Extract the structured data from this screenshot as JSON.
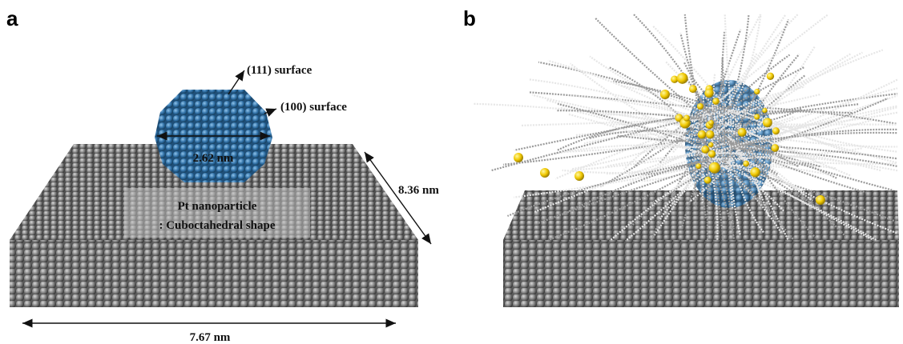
{
  "panel_a": {
    "letter": "a",
    "labels": {
      "surface_111": "(111) surface",
      "surface_100": "(100) surface",
      "diameter": "2.62 nm",
      "depth": "8.36 nm",
      "particle_name": "Pt nanoparticle",
      "particle_shape": ": Cuboctahedral shape",
      "width": "7.67 nm"
    }
  },
  "panel_b": {
    "letter": "b"
  }
}
